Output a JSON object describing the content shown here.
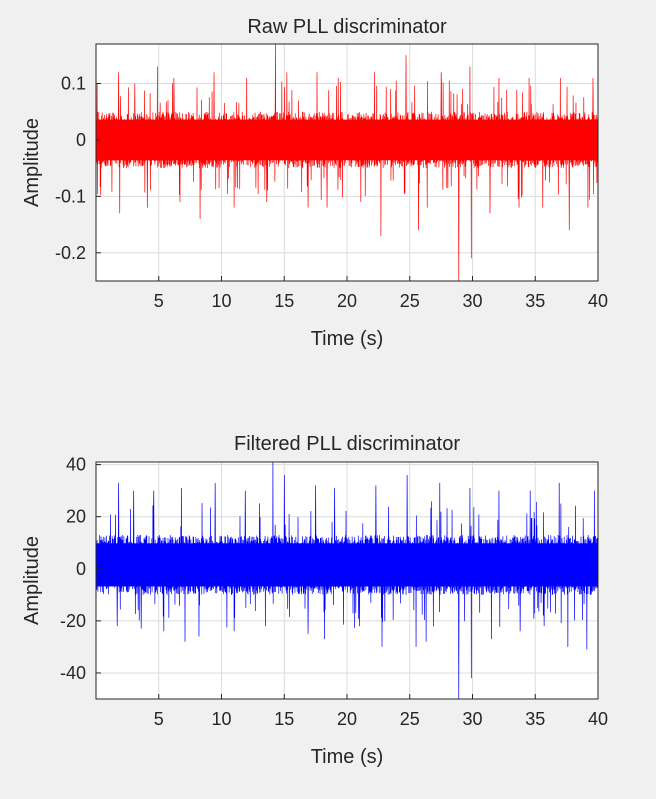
{
  "chart_data": [
    {
      "type": "line",
      "title": "Raw PLL discriminator",
      "xlabel": "Time (s)",
      "ylabel": "Amplitude",
      "xlim": [
        0,
        40
      ],
      "ylim": [
        -0.25,
        0.17
      ],
      "xticks": [
        5,
        10,
        15,
        20,
        25,
        30,
        35,
        40
      ],
      "xtick_labels": [
        "5",
        "10",
        "15",
        "20",
        "25",
        "30",
        "35",
        "40"
      ],
      "yticks": [
        0.1,
        0,
        -0.1,
        -0.2
      ],
      "ytick_labels": [
        "0.1",
        "0",
        "-0.1",
        "-0.2"
      ],
      "grid": true,
      "series": [
        {
          "color": "#ff0000",
          "band": [
            -0.05,
            0.05
          ],
          "peaks_up": [
            [
              0.1,
              0.1
            ],
            [
              1.8,
              0.12
            ],
            [
              3.1,
              0.1
            ],
            [
              4.9,
              0.13
            ],
            [
              6.2,
              0.11
            ],
            [
              9.4,
              0.12
            ],
            [
              12.0,
              0.11
            ],
            [
              14.3,
              0.17
            ],
            [
              15.2,
              0.12
            ],
            [
              17.6,
              0.12
            ],
            [
              19.3,
              0.11
            ],
            [
              22.2,
              0.12
            ],
            [
              24.7,
              0.15
            ],
            [
              27.5,
              0.12
            ],
            [
              29.8,
              0.13
            ],
            [
              32.1,
              0.11
            ],
            [
              34.5,
              0.11
            ],
            [
              37.0,
              0.11
            ],
            [
              39.6,
              0.11
            ]
          ],
          "peaks_down": [
            [
              1.9,
              -0.13
            ],
            [
              4.1,
              -0.12
            ],
            [
              6.7,
              -0.11
            ],
            [
              8.3,
              -0.14
            ],
            [
              11.0,
              -0.12
            ],
            [
              13.6,
              -0.11
            ],
            [
              16.9,
              -0.12
            ],
            [
              18.4,
              -0.12
            ],
            [
              21.1,
              -0.11
            ],
            [
              22.7,
              -0.17
            ],
            [
              25.7,
              -0.16
            ],
            [
              26.4,
              -0.12
            ],
            [
              28.9,
              -0.25
            ],
            [
              29.9,
              -0.21
            ],
            [
              31.4,
              -0.13
            ],
            [
              33.7,
              -0.12
            ],
            [
              35.6,
              -0.12
            ],
            [
              37.7,
              -0.16
            ],
            [
              39.2,
              -0.12
            ]
          ]
        }
      ]
    },
    {
      "type": "line",
      "title": "Filtered PLL discriminator",
      "xlabel": "Time (s)",
      "ylabel": "Amplitude",
      "xlim": [
        0,
        40
      ],
      "ylim": [
        -50,
        41
      ],
      "xticks": [
        5,
        10,
        15,
        20,
        25,
        30,
        35,
        40
      ],
      "xtick_labels": [
        "5",
        "10",
        "15",
        "20",
        "25",
        "30",
        "35",
        "40"
      ],
      "yticks": [
        40,
        20,
        0,
        -20,
        -40
      ],
      "ytick_labels": [
        "40",
        "20",
        "0",
        "-20",
        "-40"
      ],
      "grid": true,
      "series": [
        {
          "color": "#0000ff",
          "band": [
            -10,
            13
          ],
          "peaks_up": [
            [
              1.8,
              33
            ],
            [
              3.0,
              30
            ],
            [
              4.6,
              30
            ],
            [
              6.8,
              31
            ],
            [
              9.5,
              33
            ],
            [
              11.9,
              30
            ],
            [
              14.1,
              41
            ],
            [
              15.0,
              36
            ],
            [
              17.5,
              32
            ],
            [
              19.0,
              31
            ],
            [
              22.3,
              32
            ],
            [
              24.8,
              36
            ],
            [
              27.4,
              33
            ],
            [
              29.8,
              31
            ],
            [
              32.1,
              30
            ],
            [
              34.6,
              30
            ],
            [
              36.9,
              33
            ],
            [
              39.7,
              30
            ]
          ],
          "peaks_down": [
            [
              1.7,
              -22
            ],
            [
              3.6,
              -23
            ],
            [
              5.4,
              -24
            ],
            [
              7.1,
              -28
            ],
            [
              8.2,
              -26
            ],
            [
              11.0,
              -24
            ],
            [
              13.5,
              -22
            ],
            [
              16.9,
              -25
            ],
            [
              18.2,
              -27
            ],
            [
              21.0,
              -22
            ],
            [
              22.8,
              -30
            ],
            [
              25.5,
              -30
            ],
            [
              26.3,
              -28
            ],
            [
              28.9,
              -50
            ],
            [
              29.9,
              -42
            ],
            [
              31.5,
              -27
            ],
            [
              33.8,
              -24
            ],
            [
              35.7,
              -22
            ],
            [
              37.6,
              -30
            ],
            [
              39.1,
              -31
            ]
          ]
        }
      ]
    }
  ]
}
